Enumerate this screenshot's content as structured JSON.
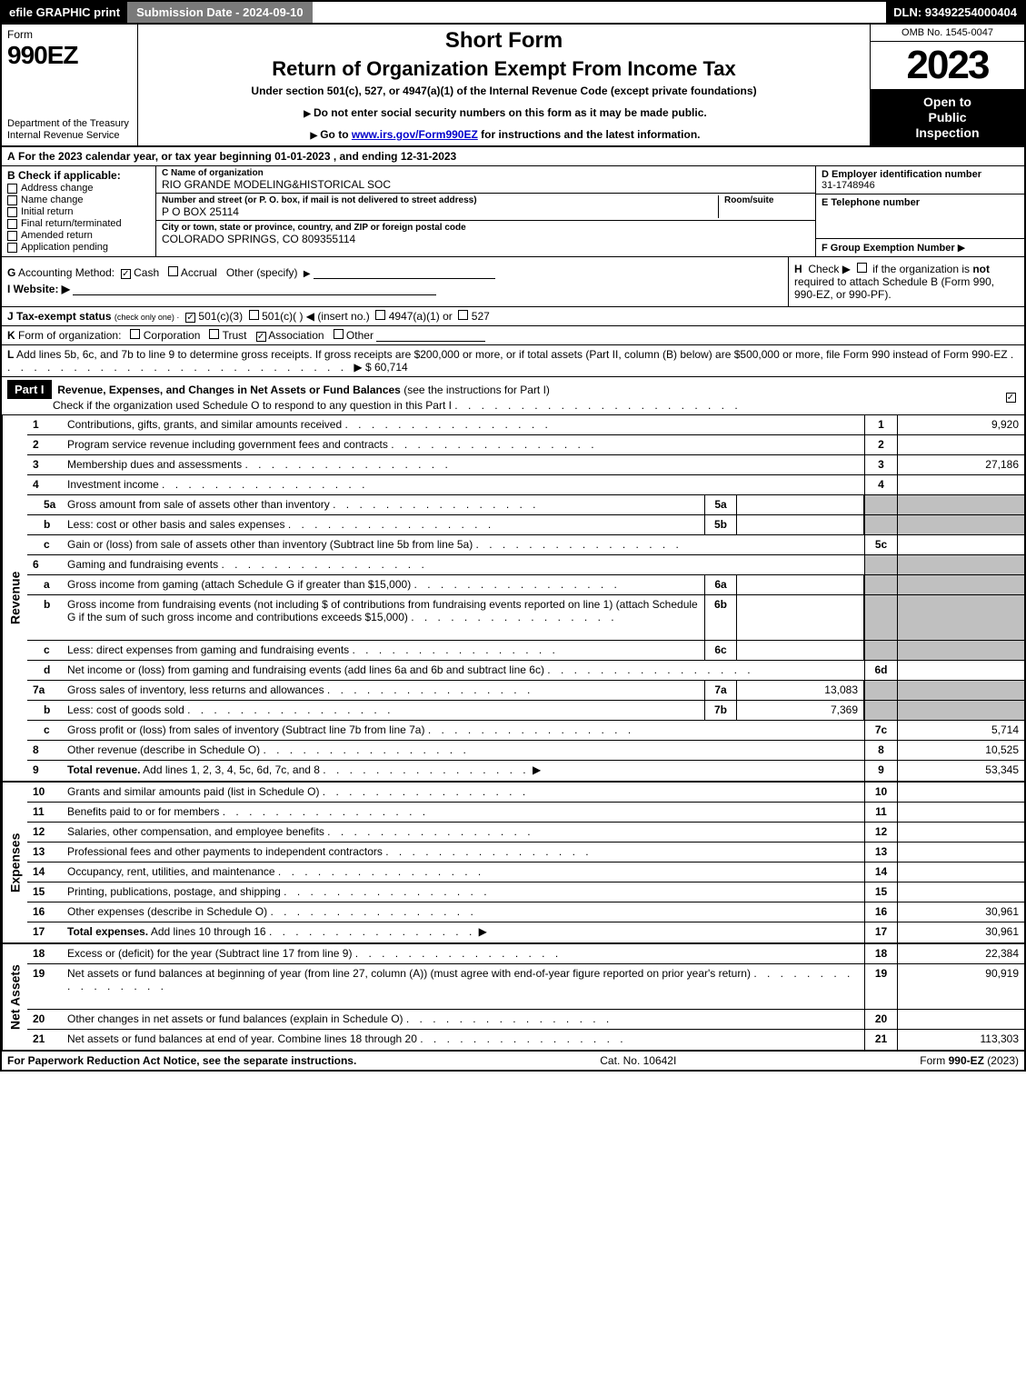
{
  "topbar": {
    "efile": "efile GRAPHIC print",
    "subdate_label": "Submission Date - 2024-09-10",
    "dln": "DLN: 93492254000404"
  },
  "header": {
    "form_label": "Form",
    "form_number": "990EZ",
    "dept1": "Department of the Treasury",
    "dept2": "Internal Revenue Service",
    "short_form": "Short Form",
    "main_title": "Return of Organization Exempt From Income Tax",
    "subtitle": "Under section 501(c), 527, or 4947(a)(1) of the Internal Revenue Code (except private foundations)",
    "instr1": "Do not enter social security numbers on this form as it may be made public.",
    "instr2_pre": "Go to ",
    "instr2_link": "www.irs.gov/Form990EZ",
    "instr2_post": " for instructions and the latest information.",
    "omb": "OMB No. 1545-0047",
    "year": "2023",
    "open1": "Open to",
    "open2": "Public",
    "open3": "Inspection"
  },
  "row_a": {
    "label": "A",
    "text": "For the 2023 calendar year, or tax year beginning 01-01-2023 , and ending 12-31-2023"
  },
  "section_b": {
    "label": "B",
    "hdr": "Check if applicable:",
    "items": [
      "Address change",
      "Name change",
      "Initial return",
      "Final return/terminated",
      "Amended return",
      "Application pending"
    ]
  },
  "section_c": {
    "name_lbl": "C Name of organization",
    "name_val": "RIO GRANDE MODELING&HISTORICAL SOC",
    "street_lbl": "Number and street (or P. O. box, if mail is not delivered to street address)",
    "street_val": "P O BOX 25114",
    "room_lbl": "Room/suite",
    "room_val": "",
    "city_lbl": "City or town, state or province, country, and ZIP or foreign postal code",
    "city_val": "COLORADO SPRINGS, CO  809355114"
  },
  "section_d": {
    "lbl": "D Employer identification number",
    "val": "31-1748946"
  },
  "section_e": {
    "lbl": "E Telephone number",
    "val": ""
  },
  "section_f": {
    "lbl": "F Group Exemption Number",
    "arrow": "▶"
  },
  "section_g": {
    "label": "G",
    "text": "Accounting Method:",
    "cash": "Cash",
    "accrual": "Accrual",
    "other": "Other (specify)"
  },
  "section_h": {
    "label": "H",
    "text1": "Check ▶",
    "text2": "if the organization is ",
    "not": "not",
    "text3": " required to attach Schedule B (Form 990, 990-EZ, or 990-PF)."
  },
  "section_i": {
    "label": "I Website: ▶"
  },
  "row_j": {
    "label": "J Tax-exempt status",
    "sub": "(check only one) ·",
    "o1": "501(c)(3)",
    "o2": "501(c)(   )",
    "o2_sub": "◀ (insert no.)",
    "o3": "4947(a)(1) or",
    "o4": "527"
  },
  "row_k": {
    "label": "K",
    "text": "Form of organization:",
    "o1": "Corporation",
    "o2": "Trust",
    "o3": "Association",
    "o4": "Other"
  },
  "row_l": {
    "label": "L",
    "text": "Add lines 5b, 6c, and 7b to line 9 to determine gross receipts. If gross receipts are $200,000 or more, or if total assets (Part II, column (B) below) are $500,000 or more, file Form 990 instead of Form 990-EZ",
    "arrow": "▶ $",
    "val": "60,714"
  },
  "part1": {
    "hdr": "Part I",
    "title": "Revenue, Expenses, and Changes in Net Assets or Fund Balances",
    "title_paren": "(see the instructions for Part I)",
    "sub": "Check if the organization used Schedule O to respond to any question in this Part I"
  },
  "sides": {
    "revenue": "Revenue",
    "expenses": "Expenses",
    "netassets": "Net Assets"
  },
  "revenue_lines": [
    {
      "n": "1",
      "desc": "Contributions, gifts, grants, and similar amounts received",
      "rnum": "1",
      "rval": "9,920"
    },
    {
      "n": "2",
      "desc": "Program service revenue including government fees and contracts",
      "rnum": "2",
      "rval": ""
    },
    {
      "n": "3",
      "desc": "Membership dues and assessments",
      "rnum": "3",
      "rval": "27,186"
    },
    {
      "n": "4",
      "desc": "Investment income",
      "rnum": "4",
      "rval": ""
    },
    {
      "n": "5a",
      "sub": true,
      "desc": "Gross amount from sale of assets other than inventory",
      "mnum": "5a",
      "mval": "",
      "shaded": true
    },
    {
      "n": "b",
      "sub": true,
      "desc": "Less: cost or other basis and sales expenses",
      "mnum": "5b",
      "mval": "",
      "shaded": true
    },
    {
      "n": "c",
      "sub": true,
      "desc": "Gain or (loss) from sale of assets other than inventory (Subtract line 5b from line 5a)",
      "rnum": "5c",
      "rval": ""
    },
    {
      "n": "6",
      "desc": "Gaming and fundraising events",
      "noright": true,
      "shaded": true
    },
    {
      "n": "a",
      "sub": true,
      "desc": "Gross income from gaming (attach Schedule G if greater than $15,000)",
      "mnum": "6a",
      "mval": "",
      "shaded": true
    },
    {
      "n": "b",
      "sub": true,
      "desc": "Gross income from fundraising events (not including $                     of contributions from fundraising events reported on line 1) (attach Schedule G if the sum of such gross income and contributions exceeds $15,000)",
      "mnum": "6b",
      "mval": "",
      "shaded": true,
      "tall": true
    },
    {
      "n": "c",
      "sub": true,
      "desc": "Less: direct expenses from gaming and fundraising events",
      "mnum": "6c",
      "mval": "",
      "shaded": true
    },
    {
      "n": "d",
      "sub": true,
      "desc": "Net income or (loss) from gaming and fundraising events (add lines 6a and 6b and subtract line 6c)",
      "rnum": "6d",
      "rval": ""
    },
    {
      "n": "7a",
      "sub": false,
      "desc": "Gross sales of inventory, less returns and allowances",
      "mnum": "7a",
      "mval": "13,083",
      "shaded": true
    },
    {
      "n": "b",
      "sub": true,
      "desc": "Less: cost of goods sold",
      "mnum": "7b",
      "mval": "7,369",
      "shaded": true
    },
    {
      "n": "c",
      "sub": true,
      "desc": "Gross profit or (loss) from sales of inventory (Subtract line 7b from line 7a)",
      "rnum": "7c",
      "rval": "5,714"
    },
    {
      "n": "8",
      "desc": "Other revenue (describe in Schedule O)",
      "rnum": "8",
      "rval": "10,525"
    },
    {
      "n": "9",
      "desc": "Total revenue. Add lines 1, 2, 3, 4, 5c, 6d, 7c, and 8",
      "rnum": "9",
      "rval": "53,345",
      "bold": true,
      "arrow": true
    }
  ],
  "expense_lines": [
    {
      "n": "10",
      "desc": "Grants and similar amounts paid (list in Schedule O)",
      "rnum": "10",
      "rval": ""
    },
    {
      "n": "11",
      "desc": "Benefits paid to or for members",
      "rnum": "11",
      "rval": ""
    },
    {
      "n": "12",
      "desc": "Salaries, other compensation, and employee benefits",
      "rnum": "12",
      "rval": ""
    },
    {
      "n": "13",
      "desc": "Professional fees and other payments to independent contractors",
      "rnum": "13",
      "rval": ""
    },
    {
      "n": "14",
      "desc": "Occupancy, rent, utilities, and maintenance",
      "rnum": "14",
      "rval": ""
    },
    {
      "n": "15",
      "desc": "Printing, publications, postage, and shipping",
      "rnum": "15",
      "rval": ""
    },
    {
      "n": "16",
      "desc": "Other expenses (describe in Schedule O)",
      "rnum": "16",
      "rval": "30,961"
    },
    {
      "n": "17",
      "desc": "Total expenses. Add lines 10 through 16",
      "rnum": "17",
      "rval": "30,961",
      "bold": true,
      "arrow": true
    }
  ],
  "netasset_lines": [
    {
      "n": "18",
      "desc": "Excess or (deficit) for the year (Subtract line 17 from line 9)",
      "rnum": "18",
      "rval": "22,384"
    },
    {
      "n": "19",
      "desc": "Net assets or fund balances at beginning of year (from line 27, column (A)) (must agree with end-of-year figure reported on prior year's return)",
      "rnum": "19",
      "rval": "90,919",
      "tall": true
    },
    {
      "n": "20",
      "desc": "Other changes in net assets or fund balances (explain in Schedule O)",
      "rnum": "20",
      "rval": ""
    },
    {
      "n": "21",
      "desc": "Net assets or fund balances at end of year. Combine lines 18 through 20",
      "rnum": "21",
      "rval": "113,303"
    }
  ],
  "footer": {
    "left": "For Paperwork Reduction Act Notice, see the separate instructions.",
    "mid": "Cat. No. 10642I",
    "right_pre": "Form ",
    "right_form": "990-EZ",
    "right_year": " (2023)"
  }
}
